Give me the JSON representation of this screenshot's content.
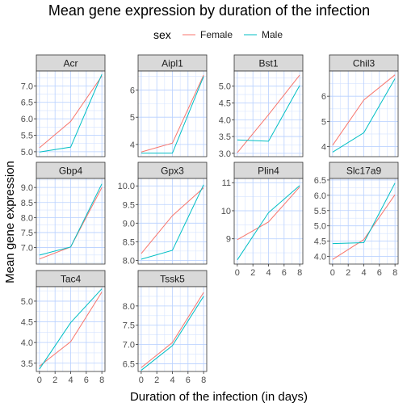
{
  "chart_data": {
    "type": "line",
    "title": "Mean gene expression by duration of the infection",
    "xlabel": "Duration of the infection (in days)",
    "ylabel": "Mean gene expression",
    "legend": {
      "title": "sex",
      "position": "top",
      "items": [
        {
          "name": "Female",
          "color": "#F8766D"
        },
        {
          "name": "Male",
          "color": "#00BFC4"
        }
      ]
    },
    "grid": true,
    "x_ticks": [
      "0",
      "2",
      "4",
      "6",
      "8"
    ],
    "x_range": [
      -0.4,
      8.4
    ],
    "facets": [
      {
        "gene": "Acr",
        "ylim": [
          4.85,
          7.45
        ],
        "y_ticks": [
          5.0,
          5.5,
          6.0,
          6.5,
          7.0
        ],
        "y_tick_labels": [
          "5.0",
          "5.5",
          "6.0",
          "6.5",
          "7.0"
        ],
        "show_x_ticks": false,
        "series": [
          {
            "name": "Female",
            "x": [
              0,
              4,
              8
            ],
            "y": [
              5.12,
              5.92,
              7.3
            ]
          },
          {
            "name": "Male",
            "x": [
              0,
              4,
              8
            ],
            "y": [
              4.99,
              5.14,
              7.35
            ]
          }
        ]
      },
      {
        "gene": "Aipl1",
        "ylim": [
          3.55,
          6.7
        ],
        "y_ticks": [
          4,
          5,
          6
        ],
        "y_tick_labels": [
          "4",
          "5",
          "6"
        ],
        "show_x_ticks": false,
        "series": [
          {
            "name": "Female",
            "x": [
              0,
              4,
              8
            ],
            "y": [
              3.72,
              4.05,
              6.55
            ]
          },
          {
            "name": "Male",
            "x": [
              0,
              4,
              8
            ],
            "y": [
              3.68,
              3.68,
              6.5
            ]
          }
        ]
      },
      {
        "gene": "Bst1",
        "ylim": [
          2.9,
          5.45
        ],
        "y_ticks": [
          3.0,
          3.5,
          4.0,
          4.5,
          5.0
        ],
        "y_tick_labels": [
          "3.0",
          "3.5",
          "4.0",
          "4.5",
          "5.0"
        ],
        "show_x_ticks": false,
        "series": [
          {
            "name": "Female",
            "x": [
              0,
              4,
              8
            ],
            "y": [
              3.02,
              4.15,
              5.33
            ]
          },
          {
            "name": "Male",
            "x": [
              0,
              4,
              8
            ],
            "y": [
              3.4,
              3.36,
              5.02
            ]
          }
        ]
      },
      {
        "gene": "Chil3",
        "ylim": [
          3.6,
          7.0
        ],
        "y_ticks": [
          4,
          5,
          6
        ],
        "y_tick_labels": [
          "4",
          "5",
          "6"
        ],
        "show_x_ticks": false,
        "series": [
          {
            "name": "Female",
            "x": [
              0,
              4,
              8
            ],
            "y": [
              4.05,
              5.85,
              6.85
            ]
          },
          {
            "name": "Male",
            "x": [
              0,
              4,
              8
            ],
            "y": [
              3.78,
              4.55,
              6.7
            ]
          }
        ]
      },
      {
        "gene": "Gbp4",
        "ylim": [
          6.45,
          9.3
        ],
        "y_ticks": [
          7.0,
          7.5,
          8.0,
          8.5,
          9.0
        ],
        "y_tick_labels": [
          "7.0",
          "7.5",
          "8.0",
          "8.5",
          "9.0"
        ],
        "show_x_ticks": false,
        "series": [
          {
            "name": "Female",
            "x": [
              0,
              4,
              8
            ],
            "y": [
              6.62,
              7.02,
              9.0
            ]
          },
          {
            "name": "Male",
            "x": [
              0,
              4,
              8
            ],
            "y": [
              6.75,
              7.02,
              9.12
            ]
          }
        ]
      },
      {
        "gene": "Gpx3",
        "ylim": [
          7.9,
          10.2
        ],
        "y_ticks": [
          8.0,
          8.5,
          9.0,
          9.5,
          10.0
        ],
        "y_tick_labels": [
          "8.0",
          "8.5",
          "9.0",
          "9.5",
          "10.0"
        ],
        "show_x_ticks": false,
        "series": [
          {
            "name": "Female",
            "x": [
              0,
              4,
              8
            ],
            "y": [
              8.18,
              9.2,
              9.95
            ]
          },
          {
            "name": "Male",
            "x": [
              0,
              4,
              8
            ],
            "y": [
              8.03,
              8.27,
              10.03
            ]
          }
        ]
      },
      {
        "gene": "Plin4",
        "ylim": [
          8.1,
          11.15
        ],
        "y_ticks": [
          9,
          10,
          11
        ],
        "y_tick_labels": [
          "9",
          "10",
          "11"
        ],
        "show_x_ticks": true,
        "series": [
          {
            "name": "Female",
            "x": [
              0,
              4,
              8
            ],
            "y": [
              8.97,
              9.6,
              10.85
            ]
          },
          {
            "name": "Male",
            "x": [
              0,
              4,
              8
            ],
            "y": [
              8.25,
              9.93,
              10.9
            ]
          }
        ]
      },
      {
        "gene": "Slc17a9",
        "ylim": [
          3.75,
          6.55
        ],
        "y_ticks": [
          4.0,
          4.5,
          5.0,
          5.5,
          6.0,
          6.5
        ],
        "y_tick_labels": [
          "4.0",
          "4.5",
          "5.0",
          "5.5",
          "6.0",
          "6.5"
        ],
        "show_x_ticks": true,
        "series": [
          {
            "name": "Female",
            "x": [
              0,
              4,
              8
            ],
            "y": [
              3.9,
              4.55,
              6.02
            ]
          },
          {
            "name": "Male",
            "x": [
              0,
              4,
              8
            ],
            "y": [
              4.42,
              4.45,
              6.4
            ]
          }
        ]
      },
      {
        "gene": "Tac4",
        "ylim": [
          3.3,
          5.35
        ],
        "y_ticks": [
          3.5,
          4.0,
          4.5,
          5.0
        ],
        "y_tick_labels": [
          "3.5",
          "4.0",
          "4.5",
          "5.0"
        ],
        "show_x_ticks": true,
        "series": [
          {
            "name": "Female",
            "x": [
              0,
              4,
              8
            ],
            "y": [
              3.43,
              4.02,
              5.22
            ]
          },
          {
            "name": "Male",
            "x": [
              0,
              4,
              8
            ],
            "y": [
              3.36,
              4.48,
              5.3
            ]
          }
        ]
      },
      {
        "gene": "Tssk5",
        "ylim": [
          6.3,
          8.5
        ],
        "y_ticks": [
          6.5,
          7.0,
          7.5,
          8.0
        ],
        "y_tick_labels": [
          "6.5",
          "7.0",
          "7.5",
          "8.0"
        ],
        "show_x_ticks": true,
        "series": [
          {
            "name": "Female",
            "x": [
              0,
              4,
              8
            ],
            "y": [
              6.4,
              7.05,
              8.35
            ]
          },
          {
            "name": "Male",
            "x": [
              0,
              4,
              8
            ],
            "y": [
              6.33,
              6.97,
              8.25
            ]
          }
        ]
      }
    ]
  }
}
